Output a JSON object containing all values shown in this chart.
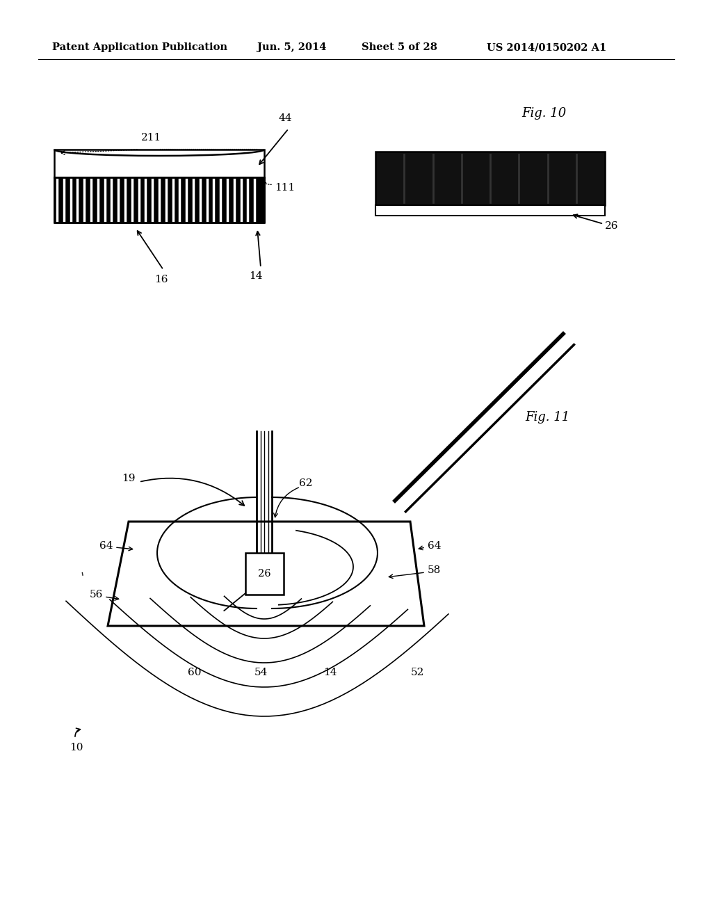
{
  "bg_color": "#ffffff",
  "header_text": "Patent Application Publication",
  "header_date": "Jun. 5, 2014",
  "header_sheet": "Sheet 5 of 28",
  "header_patent": "US 2014/0150202 A1",
  "fig10_label": "Fig. 10",
  "fig11_label": "Fig. 11"
}
